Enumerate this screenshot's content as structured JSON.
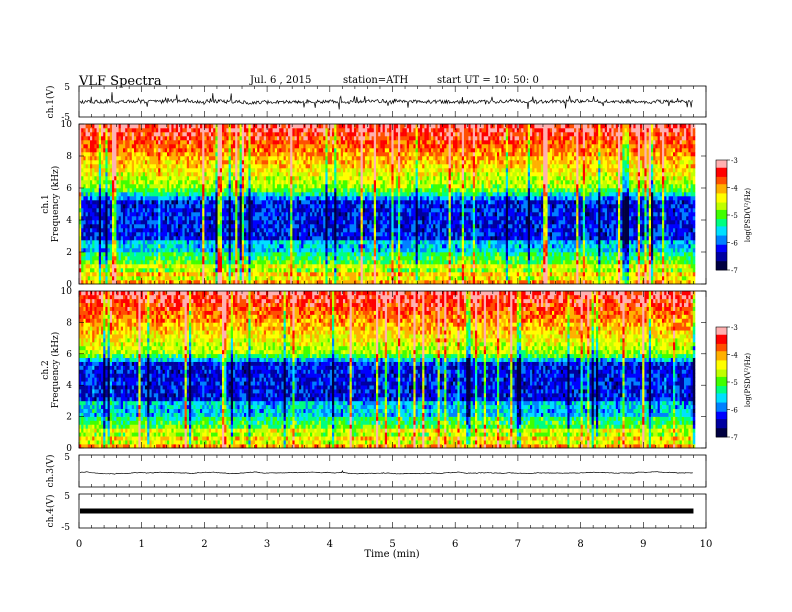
{
  "header": {
    "title": "VLF  Spectra",
    "date": "Jul.  6  ,  2015",
    "station": "station=ATH",
    "start": "start  UT  =   10: 50: 0"
  },
  "chart_data": {
    "type": "heatmap",
    "xlabel": "Time  (min)",
    "xlim": [
      0,
      10
    ],
    "x_ticks": [
      "0",
      "1",
      "2",
      "3",
      "4",
      "5",
      "6",
      "7",
      "8",
      "9",
      "10"
    ],
    "data_end_min": 9.8,
    "panels": [
      {
        "id": "ch1-waveform",
        "type": "line",
        "ylabel": "ch.1(V)",
        "ylim": [
          -5,
          5
        ],
        "y_ticks": [
          "5",
          "-5"
        ],
        "baseline": 0,
        "amplitude": "noisy, mostly within ±1 V with spikes to ±2.5 V"
      },
      {
        "id": "ch1-spectrogram",
        "type": "heatmap",
        "ylabel_channel": "ch.1",
        "ylabel": "Frequency  (kHz)",
        "ylim": [
          0,
          10
        ],
        "y_ticks": [
          "0",
          "2",
          "4",
          "6",
          "8",
          "10"
        ],
        "colorbar": {
          "label": "log(PSD(V²/Hz)",
          "range": [
            -7,
            -3
          ],
          "ticks": [
            "-3",
            "-4",
            "-5",
            "-6",
            "-7"
          ]
        }
      },
      {
        "id": "ch2-spectrogram",
        "type": "heatmap",
        "ylabel_channel": "ch.2",
        "ylabel": "Frequency  (kHz)",
        "ylim": [
          0,
          10
        ],
        "y_ticks": [
          "0",
          "2",
          "4",
          "6",
          "8",
          "10"
        ],
        "colorbar": {
          "label": "log(PSD(V²/Hz)",
          "range": [
            -7,
            -3
          ],
          "ticks": [
            "-3",
            "-4",
            "-5",
            "-6",
            "-7"
          ]
        }
      },
      {
        "id": "ch3-waveform",
        "type": "line",
        "ylabel": "ch.3(V)",
        "ylim": [
          -5,
          5
        ],
        "y_ticks": [
          "5"
        ],
        "baseline": -0.5
      },
      {
        "id": "ch4-waveform",
        "type": "line",
        "ylabel": "ch.4(V)",
        "ylim": [
          -5,
          5
        ],
        "y_ticks": [
          "5",
          "-5"
        ],
        "baseline": 0
      }
    ]
  },
  "colors": {
    "colormap": [
      "#000040",
      "#0000a0",
      "#0000ff",
      "#0080ff",
      "#00e0ff",
      "#00ff80",
      "#40ff00",
      "#c0ff00",
      "#ffff00",
      "#ffb000",
      "#ff5000",
      "#ff0000",
      "#ffb0b0",
      "#ffffff"
    ]
  }
}
